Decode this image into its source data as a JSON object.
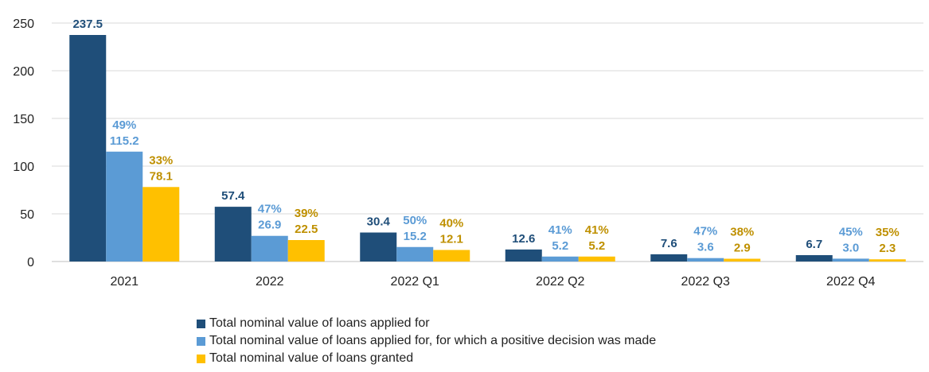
{
  "chart_data": {
    "type": "bar",
    "categories": [
      "2021",
      "2022",
      "2022 Q1",
      "2022 Q2",
      "2022 Q3",
      "2022 Q4"
    ],
    "series": [
      {
        "name": "Total nominal value of loans applied for",
        "values": [
          237.5,
          57.4,
          30.4,
          12.6,
          7.6,
          6.7
        ],
        "labels": [
          "237.5",
          "57.4",
          "30.4",
          "12.6",
          "7.6",
          "6.7"
        ],
        "color": "#1F4E79"
      },
      {
        "name": "Total nominal value of loans applied for, for which a positive decision was made",
        "values": [
          115.2,
          26.9,
          15.2,
          5.2,
          3.6,
          3.0
        ],
        "labels": [
          "115.2",
          "26.9",
          "15.2",
          "5.2",
          "3.6",
          "3.0"
        ],
        "percent_labels": [
          "49%",
          "47%",
          "50%",
          "41%",
          "47%",
          "45%"
        ],
        "color": "#5B9BD5"
      },
      {
        "name": "Total nominal value of loans granted",
        "values": [
          78.1,
          22.5,
          12.1,
          5.2,
          2.9,
          2.3
        ],
        "labels": [
          "78.1",
          "22.5",
          "12.1",
          "5.2",
          "2.9",
          "2.3"
        ],
        "percent_labels": [
          "33%",
          "39%",
          "40%",
          "41%",
          "38%",
          "35%"
        ],
        "color": "#FFC000"
      }
    ],
    "y_ticks": [
      "0",
      "50",
      "100",
      "150",
      "200",
      "250"
    ],
    "ylim": [
      0,
      250
    ],
    "grid": true,
    "legend_position": "bottom",
    "label_colors": [
      "#1F4E79",
      "#5B9BD5",
      "#BF9000"
    ]
  }
}
